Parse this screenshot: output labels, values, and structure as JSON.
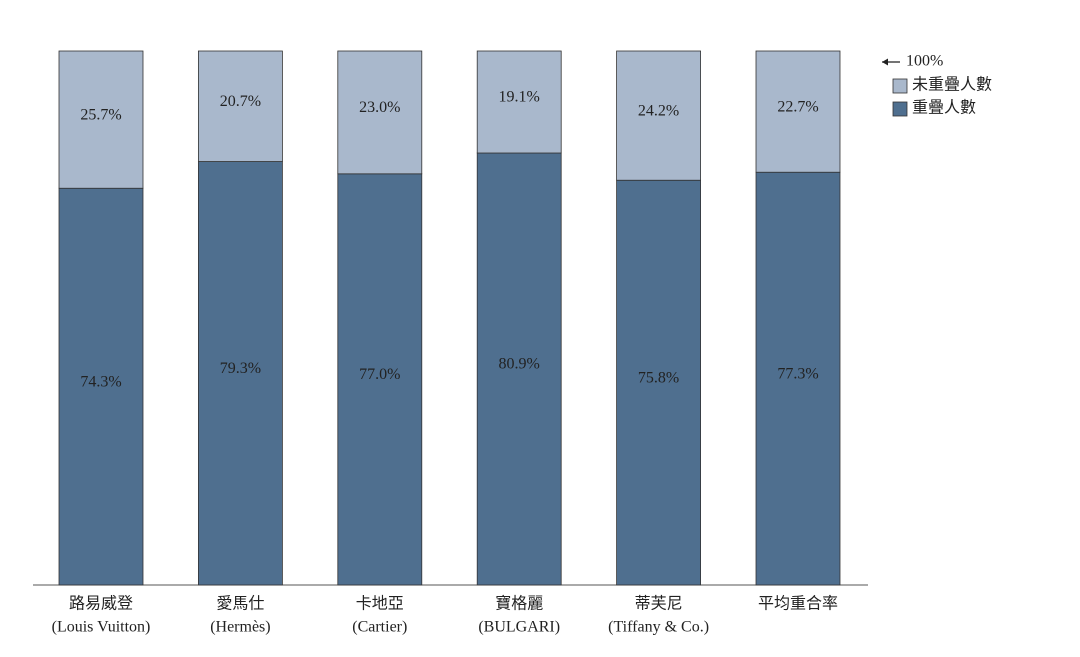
{
  "chart_data": {
    "type": "stacked_bar",
    "categories": [
      [
        "路易威登",
        "(Louis Vuitton)"
      ],
      [
        "愛馬仕",
        "(Hermès)"
      ],
      [
        "卡地亞",
        "(Cartier)"
      ],
      [
        "寶格麗",
        "(BULGARI)"
      ],
      [
        "蒂芙尼",
        "(Tiffany & Co.)"
      ],
      [
        "平均重合率"
      ]
    ],
    "series": [
      {
        "name": "重疊人數",
        "color": "#4f6f8f",
        "values": [
          74.3,
          79.3,
          77.0,
          80.9,
          75.8,
          77.3
        ],
        "value_labels": [
          "74.3%",
          "79.3%",
          "77.0%",
          "80.9%",
          "75.8%",
          "77.3%"
        ]
      },
      {
        "name": "未重疊人數",
        "color": "#a9b8cc",
        "values": [
          25.7,
          20.7,
          23.0,
          19.1,
          24.2,
          22.7
        ],
        "value_labels": [
          "25.7%",
          "20.7%",
          "23.0%",
          "19.1%",
          "24.2%",
          "22.7%"
        ]
      }
    ],
    "ylim": [
      0,
      100
    ],
    "annotation": "100%"
  }
}
